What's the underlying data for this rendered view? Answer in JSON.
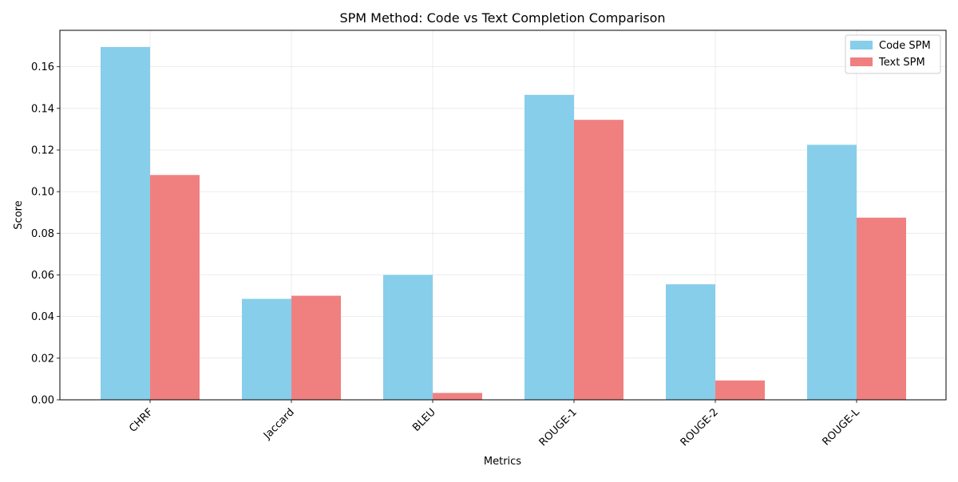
{
  "chart_data": {
    "type": "bar",
    "title": "SPM Method: Code vs Text Completion Comparison",
    "xlabel": "Metrics",
    "ylabel": "Score",
    "categories": [
      "CHRF",
      "Jaccard",
      "BLEU",
      "ROUGE-1",
      "ROUGE-2",
      "ROUGE-L"
    ],
    "series": [
      {
        "name": "Code SPM",
        "color": "#87CEEB",
        "values": [
          0.1695,
          0.0485,
          0.06,
          0.1465,
          0.0555,
          0.1225
        ]
      },
      {
        "name": "Text SPM",
        "color": "#F08080",
        "values": [
          0.108,
          0.05,
          0.0033,
          0.1345,
          0.0093,
          0.0875
        ]
      }
    ],
    "ylim": [
      0,
      0.1775
    ],
    "yticks": [
      0.0,
      0.02,
      0.04,
      0.06,
      0.08,
      0.1,
      0.12,
      0.14,
      0.16
    ],
    "ytick_labels": [
      "0.00",
      "0.02",
      "0.04",
      "0.06",
      "0.08",
      "0.10",
      "0.12",
      "0.14",
      "0.16"
    ],
    "grid": true,
    "legend_position": "top-right",
    "xtick_rotation_deg": 45
  }
}
